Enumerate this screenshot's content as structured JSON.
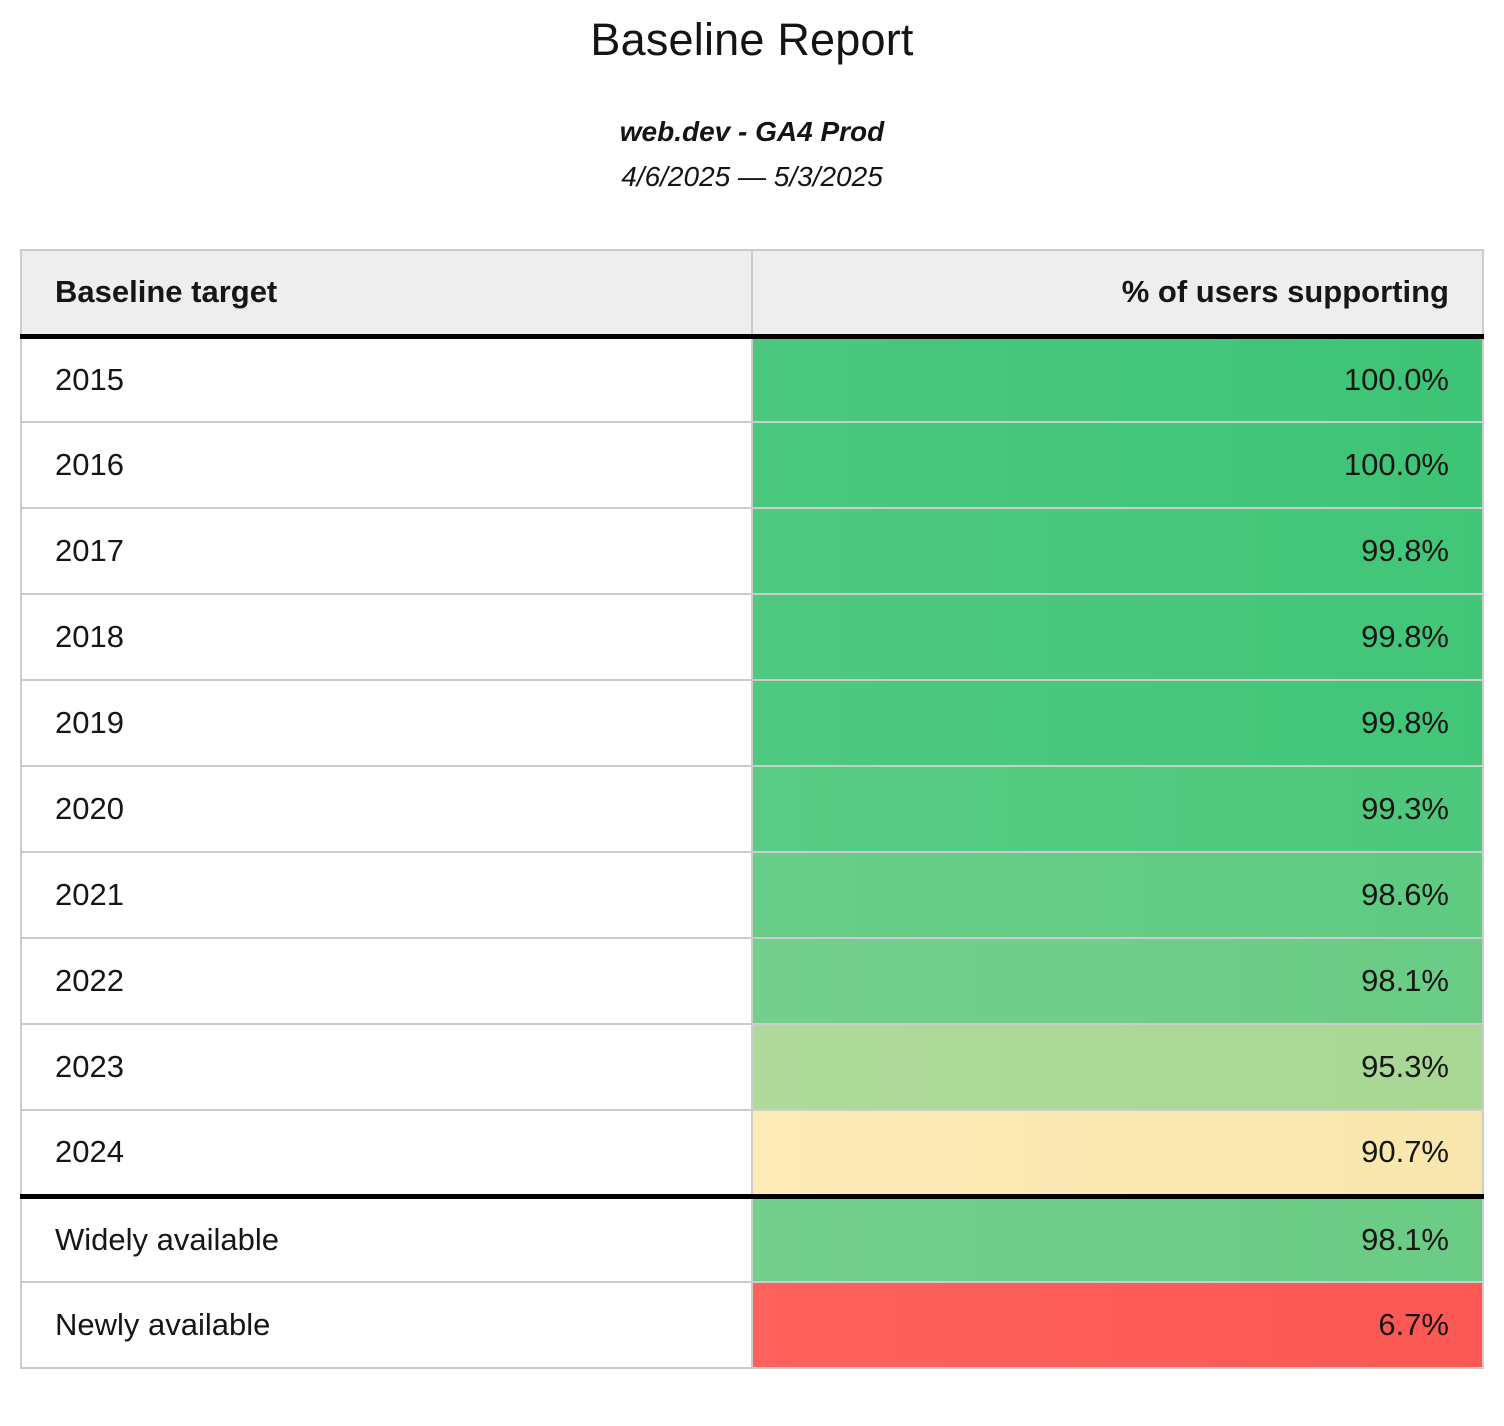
{
  "report": {
    "title": "Baseline Report",
    "subtitle": "web.dev - GA4 Prod",
    "date_range": "4/6/2025 — 5/3/2025"
  },
  "palette": {
    "header_bg": "#eeeeee",
    "grid_border": "#cccccc",
    "section_divider": "#000000",
    "text": "#141414"
  },
  "table": {
    "columns": [
      {
        "label": "Baseline target",
        "align": "left"
      },
      {
        "label": "% of users supporting",
        "align": "right"
      }
    ],
    "rows": [
      {
        "target": "2015",
        "value": "100.0%",
        "section": "year",
        "color": "#3ec476",
        "color_light": "#4bc87e"
      },
      {
        "target": "2016",
        "value": "100.0%",
        "section": "year",
        "color": "#3ec476",
        "color_light": "#4bc87e"
      },
      {
        "target": "2017",
        "value": "99.8%",
        "section": "year",
        "color": "#41c678",
        "color_light": "#4fc980"
      },
      {
        "target": "2018",
        "value": "99.8%",
        "section": "year",
        "color": "#41c678",
        "color_light": "#4fc980"
      },
      {
        "target": "2019",
        "value": "99.8%",
        "section": "year",
        "color": "#41c678",
        "color_light": "#4fc980"
      },
      {
        "target": "2020",
        "value": "99.3%",
        "section": "year",
        "color": "#4dc87c",
        "color_light": "#59cb84"
      },
      {
        "target": "2021",
        "value": "98.6%",
        "section": "year",
        "color": "#5ecb81",
        "color_light": "#68cd89"
      },
      {
        "target": "2022",
        "value": "98.1%",
        "section": "year",
        "color": "#6acc85",
        "color_light": "#74cf8d"
      },
      {
        "target": "2023",
        "value": "95.3%",
        "section": "year",
        "color": "#a8d794",
        "color_light": "#afda9b"
      },
      {
        "target": "2024",
        "value": "90.7%",
        "section": "year",
        "color": "#f8e7ad",
        "color_light": "#fcebb5"
      },
      {
        "target": "Widely available",
        "value": "98.1%",
        "section": "status",
        "color": "#6acc85",
        "color_light": "#74cf8d"
      },
      {
        "target": "Newly available",
        "value": "6.7%",
        "section": "status",
        "color": "#fc5854",
        "color_light": "#ff615c"
      }
    ]
  },
  "chart_data": {
    "type": "table",
    "title": "Baseline Report",
    "subtitle": "web.dev - GA4 Prod",
    "date_range": "4/6/2025 — 5/3/2025",
    "columns": [
      "Baseline target",
      "% of users supporting"
    ],
    "categories": [
      "2015",
      "2016",
      "2017",
      "2018",
      "2019",
      "2020",
      "2021",
      "2022",
      "2023",
      "2024",
      "Widely available",
      "Newly available"
    ],
    "values": [
      100.0,
      100.0,
      99.8,
      99.8,
      99.8,
      99.3,
      98.6,
      98.1,
      95.3,
      90.7,
      98.1,
      6.7
    ],
    "value_format": "percent",
    "cell_colors": [
      "#3ec476",
      "#3ec476",
      "#41c678",
      "#41c678",
      "#41c678",
      "#4dc87c",
      "#5ecb81",
      "#6acc85",
      "#a8d794",
      "#f8e7ad",
      "#6acc85",
      "#fc5854"
    ],
    "layout_hints": {
      "value_align": "right",
      "heatmap_scale": "red-yellow-green",
      "group_break_after": "2024"
    }
  }
}
